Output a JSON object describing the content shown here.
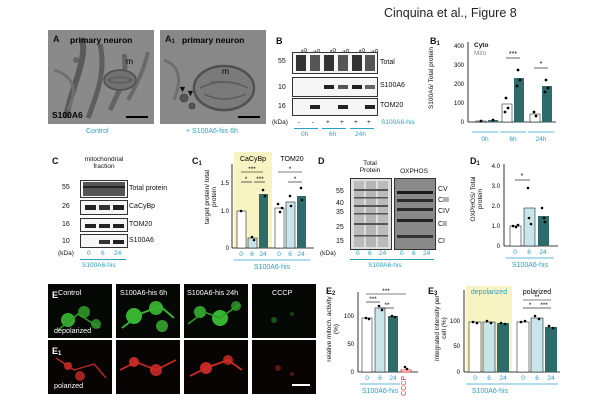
{
  "figure_title": "Cinquina et al., Figure 8",
  "colors": {
    "cyan": "#2a9fc7",
    "teal_dark": "#2e6b6b",
    "teal_light": "#c8e6ea",
    "highlight": "#f8f3c3",
    "red": "#e0302a",
    "green": "#41d23a"
  },
  "panel_A": {
    "letter": "A",
    "title": "primary neuron",
    "m_label": "m",
    "corner_label": "S100A6",
    "caption": "Control"
  },
  "panel_A1": {
    "letter": "A",
    "sub": "1",
    "title": "primary neuron",
    "m_label": "m",
    "caption": "+ S100A6-his 6h"
  },
  "panel_B": {
    "letter": "B",
    "col_headers": [
      "Cyto",
      "Mito",
      "Cyto",
      "Mito",
      "Cyto",
      "Mito"
    ],
    "row_labels": [
      "Total",
      "S100A6",
      "TOM20"
    ],
    "mw": [
      "55",
      "10",
      "16"
    ],
    "kda": "(kDa)",
    "signs": [
      "-",
      "-",
      "+",
      "+",
      "+",
      "+"
    ],
    "s100_label": "S100A6-his",
    "times": [
      "0h",
      "6h",
      "24h"
    ]
  },
  "panel_B1": {
    "letter": "B",
    "sub": "1",
    "ylabel": "S100A6/ Total protein",
    "legend": [
      "Cyto",
      "Mito"
    ],
    "yticks": [
      "0",
      "100",
      "200",
      "300",
      "400"
    ],
    "xlabels": [
      "0h",
      "6h",
      "24h"
    ],
    "signif": [
      "***",
      "*"
    ]
  },
  "panel_C": {
    "letter": "C",
    "title": "mitochondrial fraction",
    "mw": [
      "55",
      "26",
      "16",
      "10"
    ],
    "row_labels": [
      "Total protein",
      "CaCyBp",
      "TOM20",
      "S100A6"
    ],
    "kda": "(kDa)",
    "xticks": [
      "0",
      "6",
      "24"
    ],
    "xlabel": "S100A6-his"
  },
  "panel_C1": {
    "letter": "C",
    "sub": "1",
    "ylabel": "target protein/ total protein",
    "groups": [
      "CaCyBp",
      "TOM20"
    ],
    "yticks": [
      "0",
      "1.0",
      "1.5"
    ],
    "xticks": [
      "0",
      "6",
      "24",
      "0",
      "6",
      "24"
    ],
    "xlabel": "S100A6-his",
    "signif": [
      "***",
      "*",
      "***",
      "*",
      "*"
    ]
  },
  "panel_D": {
    "letter": "D",
    "headers": [
      "Total Protein",
      "OXPHOS"
    ],
    "mw": [
      "55",
      "40",
      "35",
      "25",
      "15"
    ],
    "complexes": [
      "CV",
      "CIII",
      "CIV",
      "CII",
      "CI"
    ],
    "kda": "(kDa)",
    "xticks": [
      "0",
      "6",
      "24",
      "0",
      "6",
      "24"
    ],
    "xlabel": "S100A6-his"
  },
  "panel_D1": {
    "letter": "D",
    "sub": "1",
    "ylabel": "OXPHOS/ Total protein",
    "yticks": [
      "0",
      "1.0",
      "2.0",
      "3.0",
      "4.0"
    ],
    "xticks": [
      "0",
      "6",
      "24"
    ],
    "xlabel": "S100A6-his",
    "signif": [
      "*"
    ]
  },
  "panel_E": {
    "letter": "E",
    "columns": [
      "Control",
      "S100A6-his 6h",
      "S100A6-his 24h",
      "CCCP"
    ],
    "row_label": "depolarized"
  },
  "panel_E1": {
    "letter": "E",
    "sub": "1",
    "row_label": "polarized"
  },
  "panel_E2": {
    "letter": "E",
    "sub": "2",
    "ylabel": "relative mitoch. activity (%)",
    "yticks": [
      "0",
      "50",
      "100"
    ],
    "xticks": [
      "0",
      "6",
      "24"
    ],
    "cccp_label": "CCCP",
    "xlabel": "S100A6-his",
    "signif": [
      "***",
      "***",
      "**"
    ]
  },
  "panel_E3": {
    "letter": "E",
    "sub": "3",
    "ylabel": "integrated intensity per cell (%)",
    "regions": [
      "depolarized",
      "polarized"
    ],
    "yticks": [
      "0",
      "50",
      "100"
    ],
    "xticks": [
      "0",
      "6",
      "24",
      "0",
      "6",
      "24"
    ],
    "xlabel": "S100A6-his",
    "signif": [
      "**",
      "*",
      "***"
    ]
  }
}
